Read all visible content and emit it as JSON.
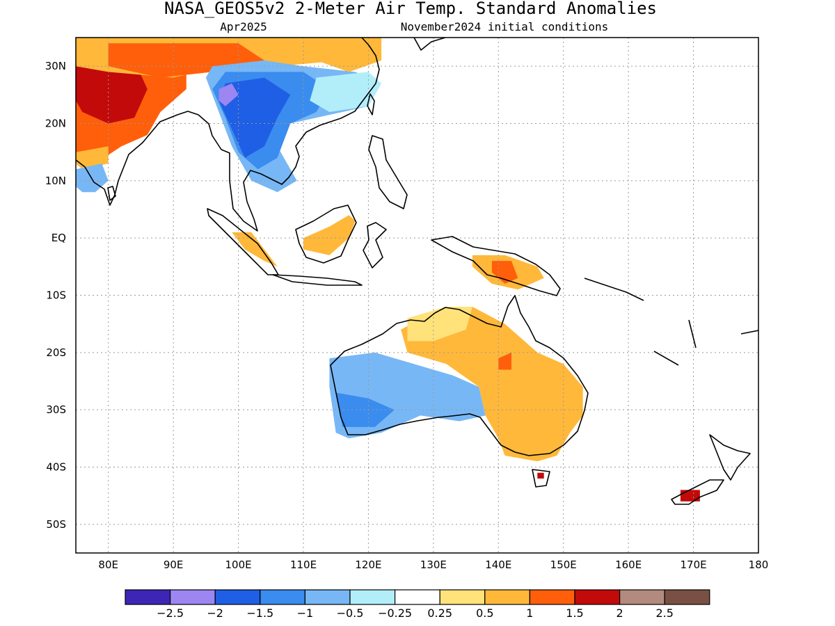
{
  "header": {
    "title": "NASA_GEOS5v2 2-Meter Air Temp. Standard Anomalies",
    "valid_month": "Apr2025",
    "init_conditions": "November2024 initial conditions"
  },
  "map": {
    "lon_range": [
      75,
      180
    ],
    "lat_range": [
      -55,
      35
    ],
    "lon_ticks": [
      {
        "value": 80,
        "label": "80E"
      },
      {
        "value": 90,
        "label": "90E"
      },
      {
        "value": 100,
        "label": "100E"
      },
      {
        "value": 110,
        "label": "110E"
      },
      {
        "value": 120,
        "label": "120E"
      },
      {
        "value": 130,
        "label": "130E"
      },
      {
        "value": 140,
        "label": "140E"
      },
      {
        "value": 150,
        "label": "150E"
      },
      {
        "value": 160,
        "label": "160E"
      },
      {
        "value": 170,
        "label": "170E"
      },
      {
        "value": 180,
        "label": "180"
      }
    ],
    "lat_ticks": [
      {
        "value": 30,
        "label": "30N"
      },
      {
        "value": 20,
        "label": "20N"
      },
      {
        "value": 10,
        "label": "10N"
      },
      {
        "value": 0,
        "label": "EQ"
      },
      {
        "value": -10,
        "label": "10S"
      },
      {
        "value": -20,
        "label": "20S"
      },
      {
        "value": -30,
        "label": "30S"
      },
      {
        "value": -40,
        "label": "40S"
      },
      {
        "value": -50,
        "label": "50S"
      }
    ],
    "grid": true
  },
  "legend": {
    "colors": [
      "#3d26b5",
      "#9d86f2",
      "#1f5fe5",
      "#3b8cef",
      "#78b7f5",
      "#b2eefa",
      "#ffffff",
      "#ffe27a",
      "#ffb839",
      "#ff5f0a",
      "#c30a0a",
      "#b38a7e",
      "#7a4f44"
    ],
    "labels": [
      "-2.5",
      "-2",
      "-1.5",
      "-1",
      "-0.5",
      "-0.25",
      "0.25",
      "0.5",
      "1",
      "1.5",
      "2",
      "2.5"
    ]
  },
  "anomaly_regions": [
    {
      "name": "india-north-warm",
      "color": "#ff5f0a",
      "poly": [
        [
          75,
          35
        ],
        [
          92,
          35
        ],
        [
          92,
          26
        ],
        [
          88,
          22
        ],
        [
          86,
          18
        ],
        [
          82,
          16
        ],
        [
          78,
          13
        ],
        [
          75,
          14
        ]
      ]
    },
    {
      "name": "india-core-hot",
      "color": "#c30a0a",
      "poly": [
        [
          75,
          31
        ],
        [
          84,
          31
        ],
        [
          86,
          26
        ],
        [
          84,
          21
        ],
        [
          80,
          20
        ],
        [
          76,
          22
        ],
        [
          75,
          24
        ]
      ]
    },
    {
      "name": "india-edge-mild",
      "color": "#ffb839",
      "poly": [
        [
          75,
          15
        ],
        [
          80,
          16
        ],
        [
          80,
          13
        ],
        [
          76,
          12
        ],
        [
          75,
          13
        ]
      ]
    },
    {
      "name": "india-south-cool",
      "color": "#78b7f5",
      "poly": [
        [
          75,
          12
        ],
        [
          79,
          13
        ],
        [
          80,
          10
        ],
        [
          78,
          8
        ],
        [
          76,
          8
        ],
        [
          75,
          9
        ]
      ]
    },
    {
      "name": "tibet-warm",
      "color": "#ffb839",
      "poly": [
        [
          75,
          35
        ],
        [
          116,
          35
        ],
        [
          116,
          31
        ],
        [
          106,
          30
        ],
        [
          98,
          30
        ],
        [
          90,
          28
        ],
        [
          80,
          29
        ],
        [
          75,
          30
        ]
      ]
    },
    {
      "name": "tibet-hot",
      "color": "#ff5f0a",
      "poly": [
        [
          80,
          34
        ],
        [
          100,
          34
        ],
        [
          104,
          31
        ],
        [
          96,
          29
        ],
        [
          88,
          28
        ],
        [
          80,
          30
        ]
      ]
    },
    {
      "name": "east-asia-cool-a",
      "color": "#78b7f5",
      "poly": [
        [
          96,
          30
        ],
        [
          104,
          31
        ],
        [
          110,
          30
        ],
        [
          118,
          29
        ],
        [
          122,
          27
        ],
        [
          120,
          23
        ],
        [
          112,
          21
        ],
        [
          108,
          20
        ],
        [
          106,
          16
        ],
        [
          109,
          10
        ],
        [
          106,
          8
        ],
        [
          102,
          10
        ],
        [
          99,
          16
        ],
        [
          97,
          22
        ],
        [
          95,
          28
        ]
      ]
    },
    {
      "name": "east-asia-cool-b",
      "color": "#3b8cef",
      "poly": [
        [
          98,
          29
        ],
        [
          110,
          29
        ],
        [
          114,
          26
        ],
        [
          112,
          22
        ],
        [
          108,
          20
        ],
        [
          106,
          14
        ],
        [
          103,
          12
        ],
        [
          100,
          15
        ],
        [
          98,
          21
        ],
        [
          96,
          26
        ]
      ]
    },
    {
      "name": "east-asia-cool-c",
      "color": "#1f5fe5",
      "poly": [
        [
          98,
          27
        ],
        [
          104,
          28
        ],
        [
          108,
          25
        ],
        [
          106,
          21
        ],
        [
          104,
          16
        ],
        [
          101,
          14
        ],
        [
          99,
          19
        ],
        [
          97,
          24
        ]
      ]
    },
    {
      "name": "east-asia-coast-light",
      "color": "#b2eefa",
      "poly": [
        [
          112,
          28
        ],
        [
          120,
          29
        ],
        [
          122,
          27
        ],
        [
          120,
          23
        ],
        [
          114,
          22
        ],
        [
          111,
          24
        ]
      ]
    },
    {
      "name": "east-china-warm",
      "color": "#ffb839",
      "poly": [
        [
          112,
          35
        ],
        [
          122,
          35
        ],
        [
          122,
          31
        ],
        [
          117,
          29
        ],
        [
          112,
          31
        ]
      ]
    },
    {
      "name": "yunnan-lilac",
      "color": "#9d86f2",
      "poly": [
        [
          97,
          26
        ],
        [
          99,
          27
        ],
        [
          100,
          25
        ],
        [
          98,
          23
        ],
        [
          97,
          24
        ]
      ]
    },
    {
      "name": "borneo-warm",
      "color": "#ffb839",
      "poly": [
        [
          110,
          0
        ],
        [
          114,
          2
        ],
        [
          117,
          4
        ],
        [
          118,
          3
        ],
        [
          117,
          0
        ],
        [
          114,
          -3
        ],
        [
          110,
          -2
        ]
      ]
    },
    {
      "name": "sumatra-warm",
      "color": "#ffb839",
      "poly": [
        [
          99,
          1
        ],
        [
          102,
          1
        ],
        [
          104,
          -2
        ],
        [
          106,
          -5
        ],
        [
          104,
          -4
        ],
        [
          101,
          -2
        ]
      ]
    },
    {
      "name": "new-guinea-warm",
      "color": "#ffb839",
      "poly": [
        [
          136,
          -3
        ],
        [
          141,
          -3
        ],
        [
          146,
          -5
        ],
        [
          147,
          -7
        ],
        [
          143,
          -9
        ],
        [
          139,
          -8
        ],
        [
          136,
          -5
        ]
      ]
    },
    {
      "name": "new-guinea-hot",
      "color": "#ff5f0a",
      "poly": [
        [
          139,
          -4
        ],
        [
          142,
          -4
        ],
        [
          143,
          -7
        ],
        [
          141,
          -8
        ],
        [
          139,
          -6
        ]
      ]
    },
    {
      "name": "australia-west-cool",
      "color": "#78b7f5",
      "poly": [
        [
          114,
          -21
        ],
        [
          121,
          -20
        ],
        [
          127,
          -22
        ],
        [
          133,
          -24
        ],
        [
          137,
          -26
        ],
        [
          138,
          -31
        ],
        [
          134,
          -32
        ],
        [
          128,
          -31
        ],
        [
          122,
          -34
        ],
        [
          117,
          -35
        ],
        [
          115,
          -34
        ],
        [
          114,
          -26
        ]
      ]
    },
    {
      "name": "australia-west-cooler",
      "color": "#3b8cef",
      "poly": [
        [
          115,
          -27
        ],
        [
          120,
          -28
        ],
        [
          124,
          -30
        ],
        [
          121,
          -33
        ],
        [
          116,
          -33
        ]
      ]
    },
    {
      "name": "australia-north-east-warm",
      "color": "#ffb839",
      "poly": [
        [
          125,
          -16
        ],
        [
          130,
          -13
        ],
        [
          136,
          -12
        ],
        [
          141,
          -15
        ],
        [
          144,
          -18
        ],
        [
          146,
          -20
        ],
        [
          150,
          -22
        ],
        [
          153,
          -26
        ],
        [
          153,
          -31
        ],
        [
          151,
          -34
        ],
        [
          149,
          -38
        ],
        [
          146,
          -39
        ],
        [
          141,
          -38
        ],
        [
          140,
          -35
        ],
        [
          138,
          -31
        ],
        [
          137,
          -26
        ],
        [
          132,
          -22
        ],
        [
          126,
          -20
        ]
      ]
    },
    {
      "name": "australia-north-pale",
      "color": "#ffe27a",
      "poly": [
        [
          126,
          -14
        ],
        [
          132,
          -12
        ],
        [
          136,
          -12
        ],
        [
          135,
          -16
        ],
        [
          130,
          -18
        ],
        [
          126,
          -18
        ]
      ]
    },
    {
      "name": "australia-central-hot",
      "color": "#ff5f0a",
      "poly": [
        [
          140,
          -21
        ],
        [
          142,
          -20
        ],
        [
          142,
          -23
        ],
        [
          140,
          -23
        ]
      ]
    },
    {
      "name": "tasmania-hot",
      "color": "#c30a0a",
      "poly": [
        [
          146,
          -41
        ],
        [
          147,
          -41
        ],
        [
          147,
          -42
        ],
        [
          146,
          -42
        ]
      ]
    },
    {
      "name": "new-zealand-hot",
      "color": "#c30a0a",
      "poly": [
        [
          168,
          -44
        ],
        [
          171,
          -44
        ],
        [
          171,
          -46
        ],
        [
          168,
          -46
        ]
      ]
    }
  ]
}
